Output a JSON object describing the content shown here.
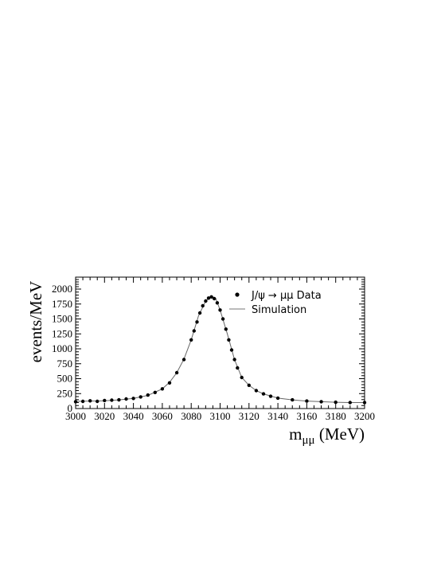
{
  "chart_data": {
    "type": "scatter",
    "xlabel": "m",
    "xlabel_sub": "μμ",
    "xlabel_unit": " (MeV)",
    "ylabel": "events/MeV",
    "xlim": [
      3000,
      3200
    ],
    "ylim": [
      0,
      2200
    ],
    "x_ticks": [
      3000,
      3020,
      3040,
      3060,
      3080,
      3100,
      3120,
      3140,
      3160,
      3180,
      3200
    ],
    "y_ticks": [
      0,
      250,
      500,
      750,
      1000,
      1250,
      1500,
      1750,
      2000
    ],
    "grid": false,
    "legend_position": "top-right",
    "series": [
      {
        "name": "J/ψ → μμ Data",
        "style": "points",
        "x": [
          3000,
          3005,
          3010,
          3015,
          3020,
          3025,
          3030,
          3035,
          3040,
          3045,
          3050,
          3055,
          3060,
          3065,
          3070,
          3075,
          3080,
          3082,
          3084,
          3086,
          3088,
          3090,
          3092,
          3094,
          3096,
          3098,
          3100,
          3102,
          3104,
          3106,
          3108,
          3110,
          3112,
          3115,
          3120,
          3125,
          3130,
          3135,
          3140,
          3150,
          3160,
          3170,
          3180,
          3190,
          3200
        ],
        "y": [
          115,
          120,
          130,
          120,
          135,
          140,
          145,
          160,
          170,
          195,
          225,
          270,
          330,
          430,
          600,
          820,
          1150,
          1300,
          1450,
          1600,
          1720,
          1800,
          1850,
          1870,
          1840,
          1770,
          1650,
          1500,
          1330,
          1150,
          980,
          820,
          680,
          520,
          390,
          300,
          245,
          205,
          175,
          145,
          125,
          115,
          105,
          100,
          100
        ]
      },
      {
        "name": "Simulation",
        "style": "line",
        "x": [
          3000,
          3010,
          3020,
          3030,
          3040,
          3050,
          3060,
          3065,
          3070,
          3075,
          3080,
          3085,
          3090,
          3093,
          3095,
          3097,
          3100,
          3105,
          3110,
          3115,
          3120,
          3125,
          3130,
          3140,
          3150,
          3160,
          3170,
          3180,
          3190,
          3200
        ],
        "y": [
          120,
          125,
          130,
          145,
          170,
          220,
          330,
          440,
          600,
          830,
          1150,
          1550,
          1800,
          1860,
          1870,
          1840,
          1650,
          1250,
          820,
          520,
          390,
          300,
          245,
          175,
          145,
          125,
          115,
          105,
          100,
          100
        ]
      }
    ]
  }
}
